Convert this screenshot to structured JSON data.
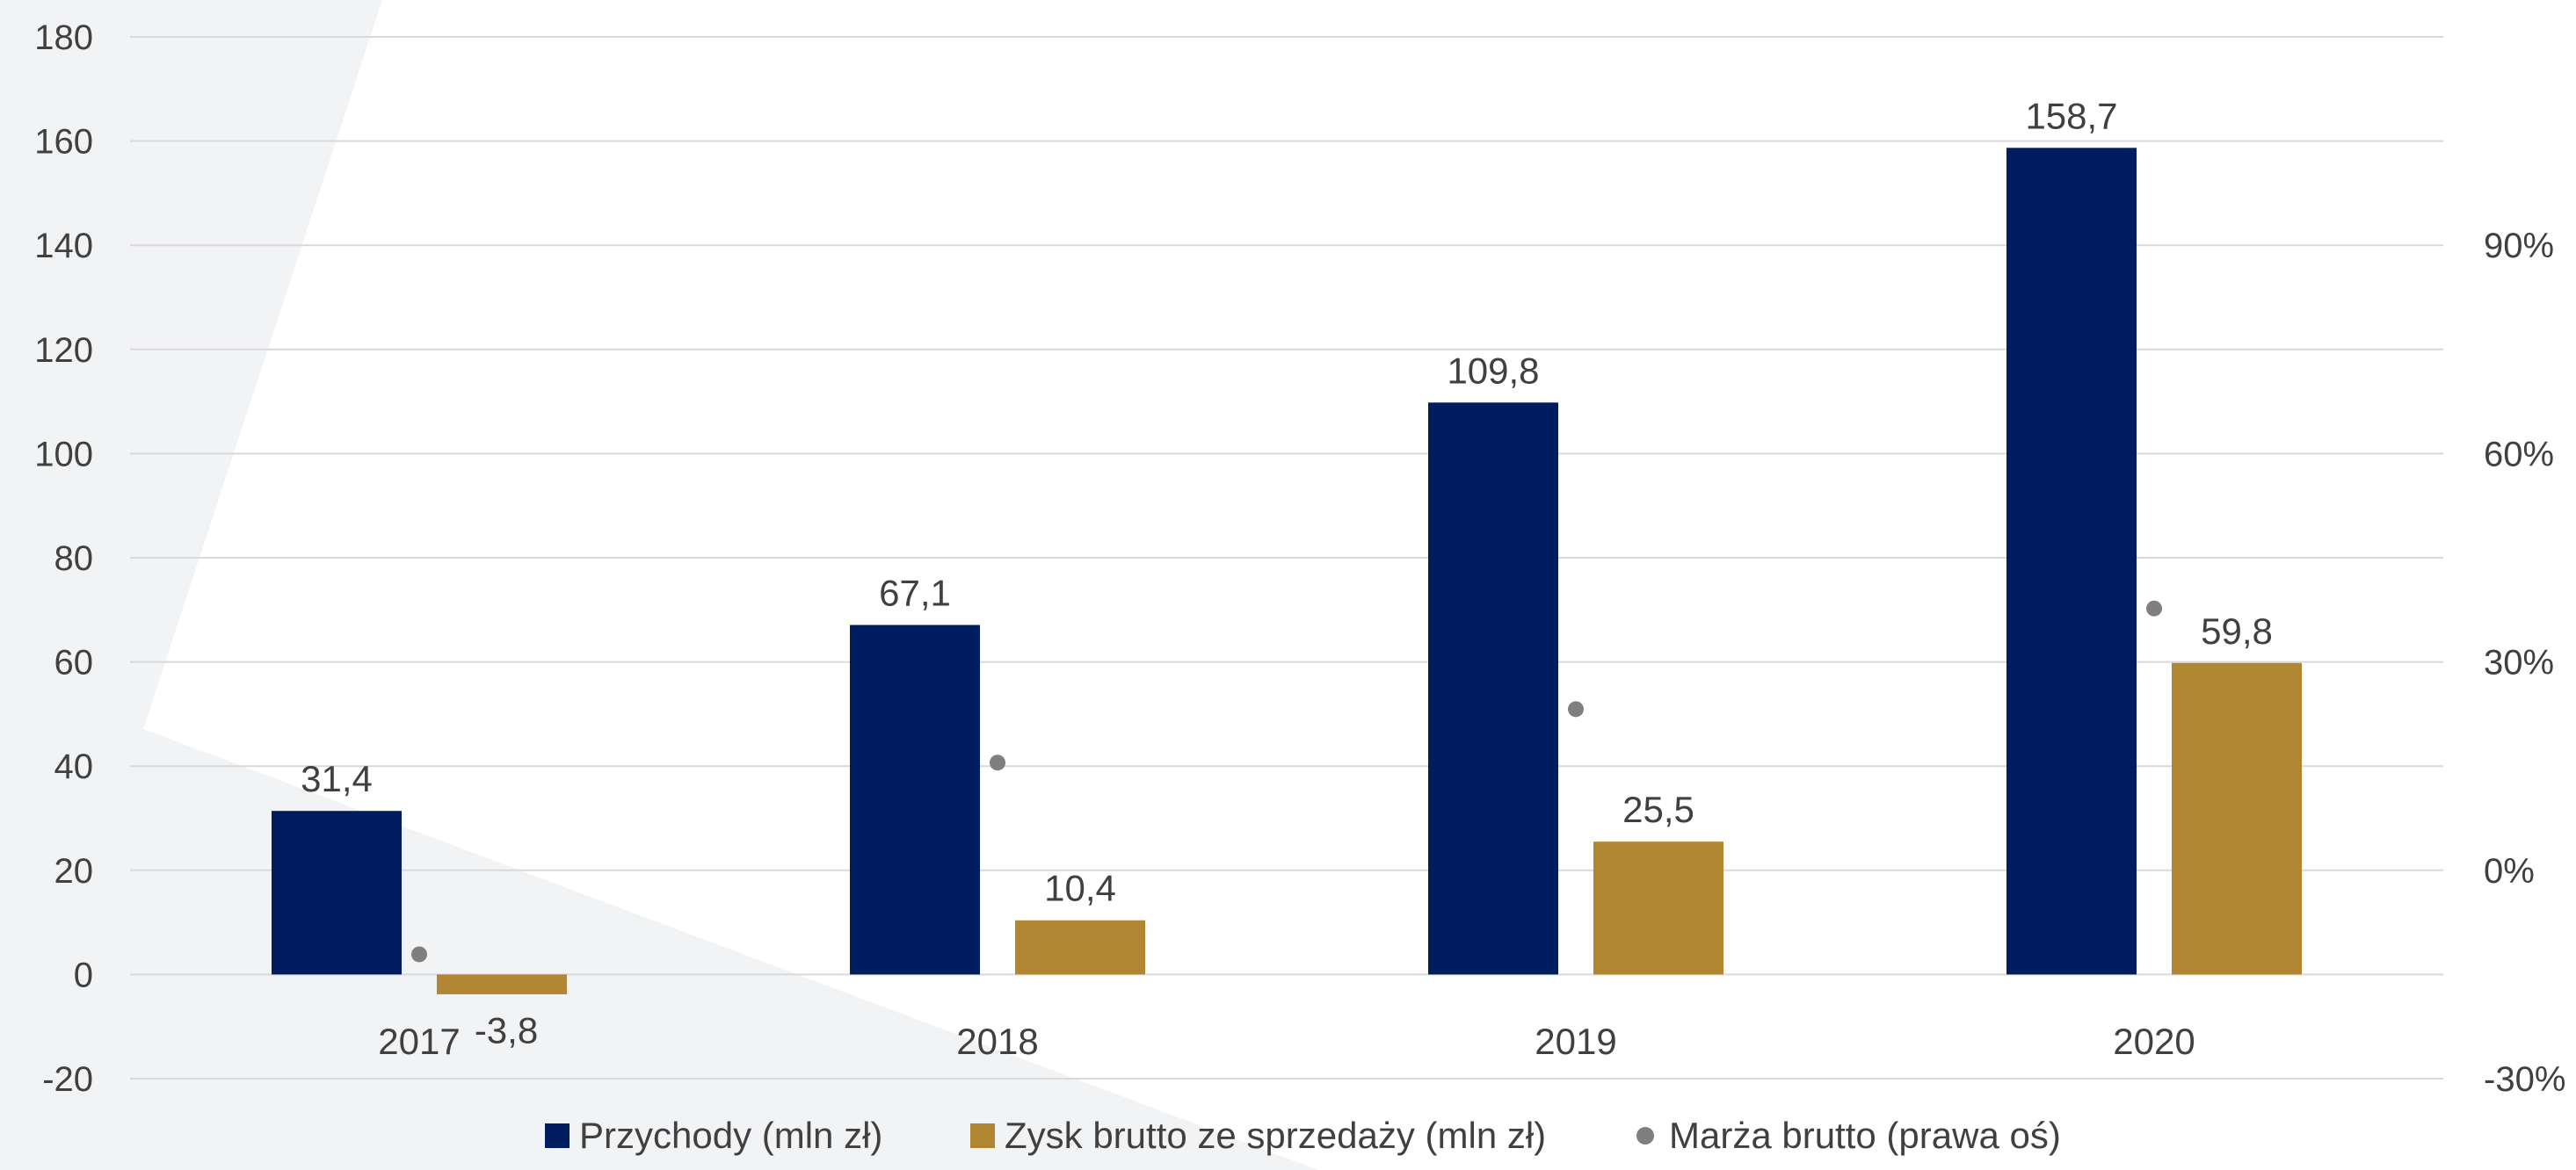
{
  "chart_data": {
    "type": "bar",
    "categories": [
      "2017",
      "2018",
      "2019",
      "2020"
    ],
    "series": [
      {
        "name": "Przychody (mln zł)",
        "type": "bar",
        "axis": "left",
        "color": "#001e5f",
        "values": [
          31.4,
          67.1,
          109.8,
          158.7
        ],
        "labels": [
          "31,4",
          "67,1",
          "109,8",
          "158,7"
        ]
      },
      {
        "name": "Zysk brutto ze sprzedaży (mln zł)",
        "type": "bar",
        "axis": "left",
        "color": "#b18632",
        "values": [
          -3.8,
          10.4,
          25.5,
          59.8
        ],
        "labels": [
          "-3,8",
          "10,4",
          "25,5",
          "59,8"
        ]
      },
      {
        "name": "Marża brutto (prawa oś)",
        "type": "scatter",
        "axis": "right",
        "color": "#7f7f7f",
        "values": [
          -12.1,
          15.5,
          23.2,
          37.7
        ]
      }
    ],
    "y_left": {
      "min": -20,
      "max": 180,
      "step": 20,
      "ticks": [
        "180",
        "160",
        "140",
        "120",
        "100",
        "80",
        "60",
        "40",
        "20",
        "0",
        "-20"
      ]
    },
    "y_right": {
      "min": -30,
      "max": 120,
      "ticks": [
        "90%",
        "60%",
        "30%",
        "0%",
        "-30%"
      ],
      "tick_values": [
        90,
        60,
        30,
        0,
        -30
      ]
    },
    "grid": true,
    "legend_position": "bottom",
    "gridline_color": "#d9d9d9",
    "text_color": "#404040",
    "background_shape_color": "#f2f3f5"
  }
}
